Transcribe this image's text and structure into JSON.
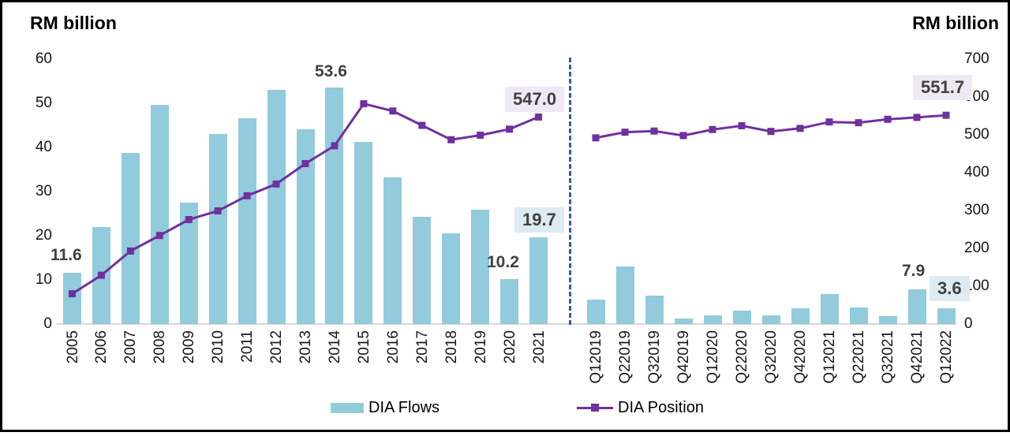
{
  "left_axis_title": "RM billion",
  "right_axis_title": "RM billion",
  "legend": [
    {
      "label": "DIA Flows",
      "color": "#92CBDC",
      "swatch": "bar-icon"
    },
    {
      "label": "DIA Position",
      "color": "#7030A0",
      "swatch": "line-square-marker-icon"
    }
  ],
  "colors": {
    "bar_fill": "#92CBDC",
    "line_stroke": "#7030A0",
    "divider_dashed": "#3A57A7",
    "annotation_text": "#404040",
    "annotation_box_purple": "#EFE9F6",
    "annotation_box_blue": "#DEEBF3",
    "baseline": "#D9D9D9",
    "frame_border": "#000000"
  },
  "chart_data": {
    "type": "bar+line combo (two panels split by dashed divider: annual left, quarterly right)",
    "title": "",
    "left_axis": {
      "title": "RM billion",
      "range": [
        0,
        60
      ],
      "ticks": [
        60,
        50,
        40,
        30,
        20,
        10,
        0
      ],
      "applies_to": "DIA Flows bars"
    },
    "right_axis": {
      "title": "RM billion",
      "range": [
        0,
        700
      ],
      "ticks": [
        700,
        600,
        500,
        400,
        300,
        200,
        100,
        0
      ],
      "applies_to": "DIA Position line"
    },
    "grid": "off",
    "legend_position": "bottom",
    "panels": [
      {
        "name": "annual",
        "categories": [
          "2005",
          "2006",
          "2007",
          "2008",
          "2009",
          "2010",
          "2011",
          "2012",
          "2013",
          "2014",
          "2015",
          "2016",
          "2017",
          "2018",
          "2019",
          "2020",
          "2021"
        ],
        "series": [
          {
            "name": "DIA Flows",
            "type": "bar",
            "axis": "left",
            "values": [
              11.6,
              22.0,
              38.8,
              49.7,
              27.5,
              43.1,
              46.6,
              53.0,
              44.1,
              53.6,
              41.2,
              33.3,
              24.2,
              20.5,
              25.9,
              10.2,
              19.7
            ]
          },
          {
            "name": "DIA Position",
            "type": "line",
            "axis": "right",
            "values": [
              80,
              129,
              193,
              234,
              276,
              299,
              339,
              370,
              424,
              471,
              582,
              563,
              525,
              487,
              499,
              515,
              547.0
            ]
          }
        ]
      },
      {
        "name": "quarterly",
        "categories": [
          "Q12019",
          "Q22019",
          "Q32019",
          "Q42019",
          "Q12020",
          "Q22020",
          "Q32020",
          "Q42020",
          "Q12021",
          "Q22021",
          "Q32021",
          "Q42021",
          "Q12022"
        ],
        "series": [
          {
            "name": "DIA Flows",
            "type": "bar",
            "axis": "left",
            "values": [
              5.5,
              13.0,
              6.4,
              1.2,
              2.0,
              3.0,
              2.0,
              3.6,
              6.8,
              3.7,
              1.7,
              7.9,
              3.6
            ]
          },
          {
            "name": "DIA Position",
            "type": "line",
            "axis": "right",
            "values": [
              492,
              507,
              510,
              498,
              514,
              524,
              509,
              517,
              534,
              532,
              541,
              546,
              551.7
            ]
          }
        ]
      }
    ],
    "annotations": [
      {
        "id": "flows-2005",
        "text": "11.6",
        "series": "DIA Flows",
        "category": "2005",
        "style": "plain"
      },
      {
        "id": "flows-2014",
        "text": "53.6",
        "series": "DIA Flows",
        "category": "2014",
        "style": "plain"
      },
      {
        "id": "position-2021",
        "text": "547.0",
        "series": "DIA Position",
        "category": "2021",
        "style": "box-purple"
      },
      {
        "id": "flows-2020",
        "text": "10.2",
        "series": "DIA Flows",
        "category": "2020",
        "style": "plain"
      },
      {
        "id": "flows-2021",
        "text": "19.7",
        "series": "DIA Flows",
        "category": "2021",
        "style": "box-blue"
      },
      {
        "id": "position-Q12022",
        "text": "551.7",
        "series": "DIA Position",
        "category": "Q12022",
        "style": "box-purple"
      },
      {
        "id": "flows-Q42021",
        "text": "7.9",
        "series": "DIA Flows",
        "category": "Q42021",
        "style": "plain"
      },
      {
        "id": "flows-Q12022",
        "text": "3.6",
        "series": "DIA Flows",
        "category": "Q12022",
        "style": "box-blue"
      }
    ]
  }
}
